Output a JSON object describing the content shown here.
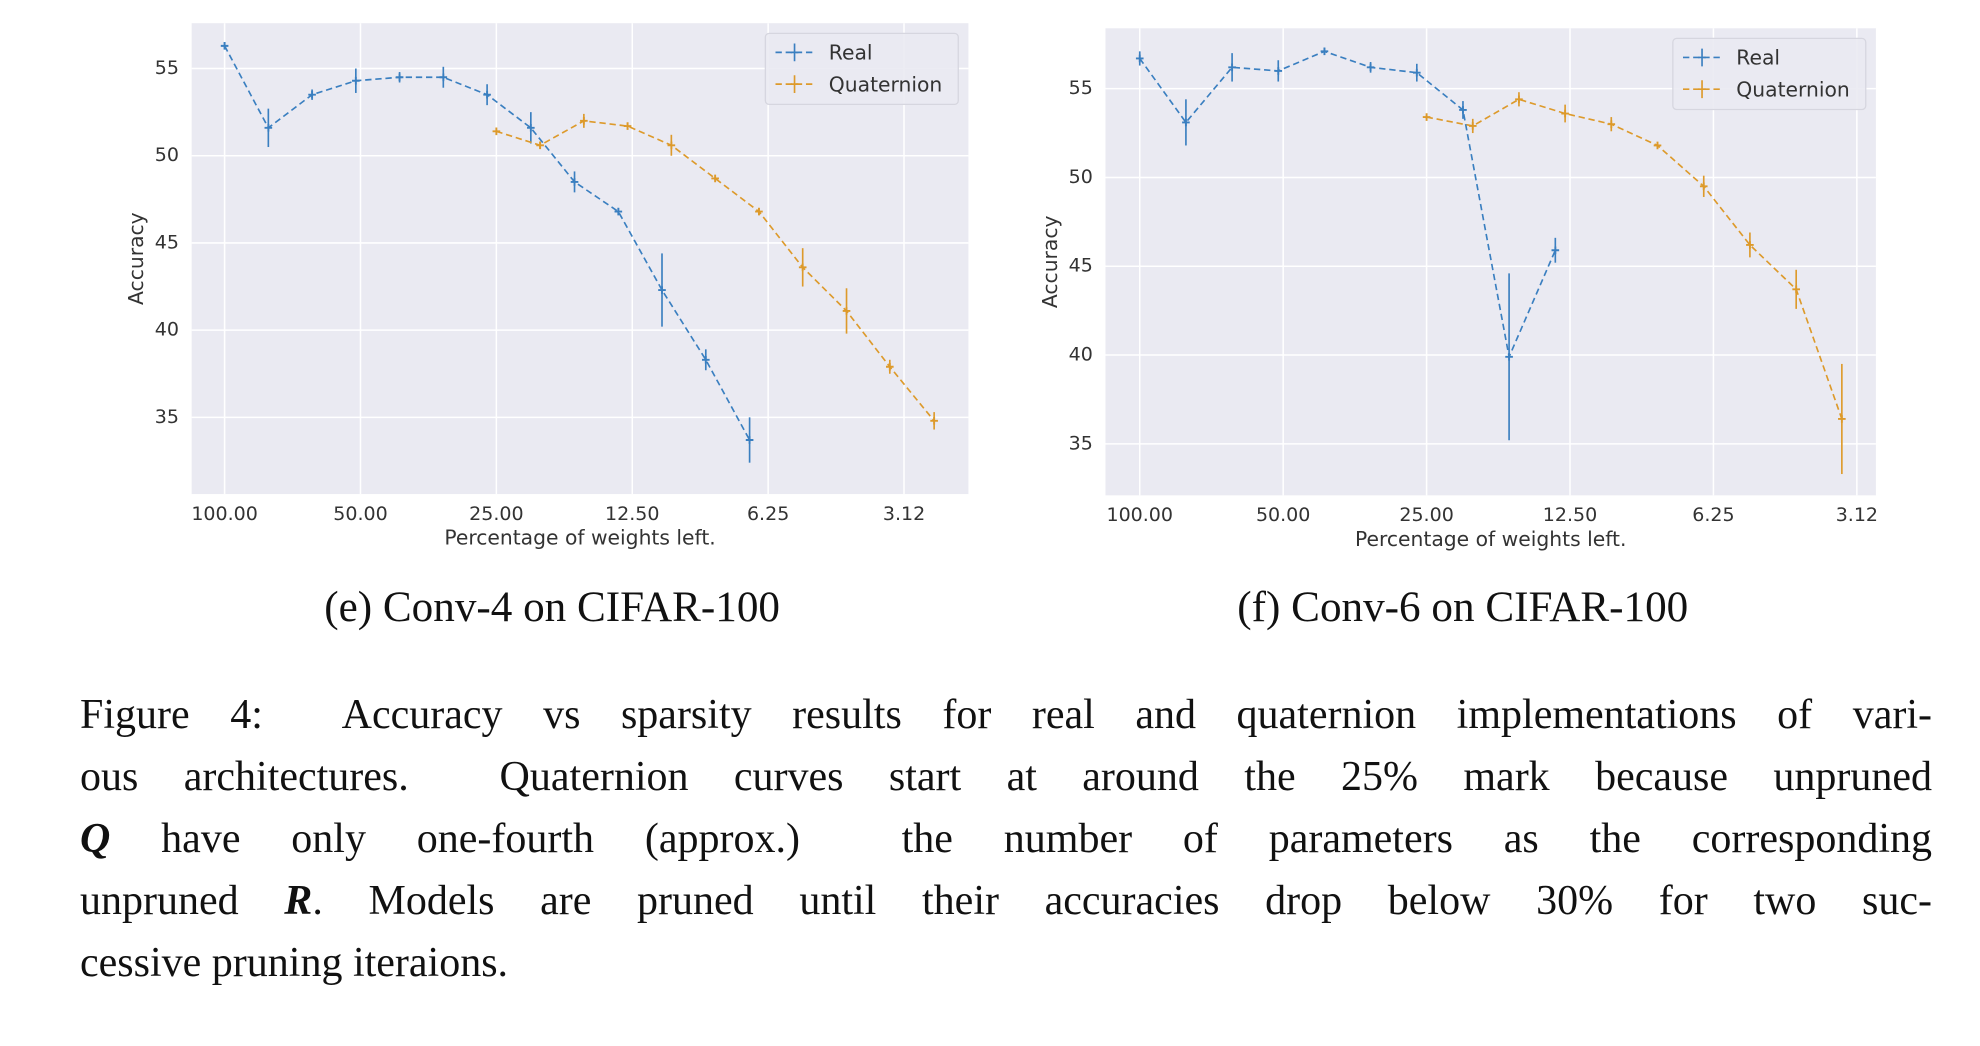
{
  "chart_data": [
    {
      "type": "line",
      "subcaption": "(e) Conv-4 on CIFAR-100",
      "xlabel": "Percentage of weights left.",
      "ylabel": "Accuracy",
      "xscale": "log",
      "xlim": [
        118.3,
        2.25
      ],
      "ylim": [
        30.6,
        57.6
      ],
      "grid": true,
      "legend": "upper right",
      "xticks": [
        {
          "value": 100,
          "label": "100.00"
        },
        {
          "value": 50,
          "label": "50.00"
        },
        {
          "value": 25,
          "label": "25.00"
        },
        {
          "value": 12.5,
          "label": "12.50"
        },
        {
          "value": 6.25,
          "label": "6.25"
        },
        {
          "value": 3.125,
          "label": "3.12"
        }
      ],
      "yticks": [
        35,
        40,
        45,
        50,
        55
      ],
      "series": [
        {
          "name": "Real",
          "color": "#3a7fc0",
          "x": [
            100,
            80,
            64,
            51.2,
            40.96,
            32.77,
            26.21,
            20.97,
            16.78,
            13.42,
            10.74,
            8.59,
            6.87
          ],
          "values": [
            56.3,
            51.6,
            53.5,
            54.3,
            54.5,
            54.5,
            53.5,
            51.6,
            48.5,
            46.8,
            42.3,
            38.3,
            33.7
          ],
          "errors": [
            0.2,
            1.1,
            0.3,
            0.7,
            0.3,
            0.6,
            0.6,
            0.9,
            0.6,
            0.2,
            2.1,
            0.6,
            1.3
          ]
        },
        {
          "name": "Quaternion",
          "color": "#dd9a2b",
          "x": [
            25,
            20,
            16,
            12.8,
            10.24,
            8.19,
            6.55,
            5.24,
            4.19,
            3.36,
            2.68
          ],
          "values": [
            51.4,
            50.6,
            52.0,
            51.7,
            50.6,
            48.7,
            46.8,
            43.6,
            41.1,
            37.9,
            34.8
          ],
          "errors": [
            0.1,
            0.2,
            0.4,
            0.2,
            0.6,
            0.1,
            0.2,
            1.1,
            1.3,
            0.4,
            0.5
          ]
        }
      ]
    },
    {
      "type": "line",
      "subcaption": "(f) Conv-6 on CIFAR-100",
      "xlabel": "Percentage of weights left.",
      "ylabel": "Accuracy",
      "xscale": "log",
      "xlim": [
        118.0,
        2.85
      ],
      "ylim": [
        32.1,
        58.4
      ],
      "grid": true,
      "legend": "upper right",
      "xticks": [
        {
          "value": 100,
          "label": "100.00"
        },
        {
          "value": 50,
          "label": "50.00"
        },
        {
          "value": 25,
          "label": "25.00"
        },
        {
          "value": 12.5,
          "label": "12.50"
        },
        {
          "value": 6.25,
          "label": "6.25"
        },
        {
          "value": 3.125,
          "label": "3.12"
        }
      ],
      "yticks": [
        35,
        40,
        45,
        50,
        55
      ],
      "series": [
        {
          "name": "Real",
          "color": "#3a7fc0",
          "x": [
            100,
            80,
            64,
            51.2,
            40.96,
            32.77,
            26.21,
            20.97,
            16.78,
            13.42
          ],
          "values": [
            56.7,
            53.1,
            56.2,
            56.0,
            57.1,
            56.2,
            55.9,
            53.8,
            39.9,
            45.9
          ],
          "errors": [
            0.4,
            1.3,
            0.8,
            0.6,
            0.2,
            0.3,
            0.5,
            0.5,
            4.7,
            0.7
          ]
        },
        {
          "name": "Quaternion",
          "color": "#dd9a2b",
          "x": [
            25,
            20,
            16,
            12.8,
            10.24,
            8.19,
            6.55,
            5.24,
            4.19,
            3.36
          ],
          "values": [
            53.4,
            52.9,
            54.4,
            53.6,
            53.0,
            51.8,
            49.5,
            46.2,
            43.7,
            36.4
          ],
          "errors": [
            0.1,
            0.4,
            0.4,
            0.5,
            0.4,
            0.1,
            0.6,
            0.7,
            1.1,
            3.1
          ]
        }
      ]
    }
  ],
  "caption_lines": [
    [
      {
        "text": "Figure 4:  Accuracy vs sparsity results for real and quaternion implementations of vari-"
      }
    ],
    [
      {
        "text": "ous architectures.  Quaternion curves start at around the 25% mark because unpruned"
      }
    ],
    [
      {
        "text": "Q",
        "emphasis": "bold-italic"
      },
      {
        "text": " have only one-fourth (approx.)  the number of parameters as the corresponding"
      }
    ],
    [
      {
        "text": "unpruned "
      },
      {
        "text": "R",
        "emphasis": "bold-italic"
      },
      {
        "text": ". Models are pruned until their accuracies drop below 30% for two suc-"
      }
    ],
    [
      {
        "text": "cessive pruning iteraions."
      }
    ]
  ]
}
